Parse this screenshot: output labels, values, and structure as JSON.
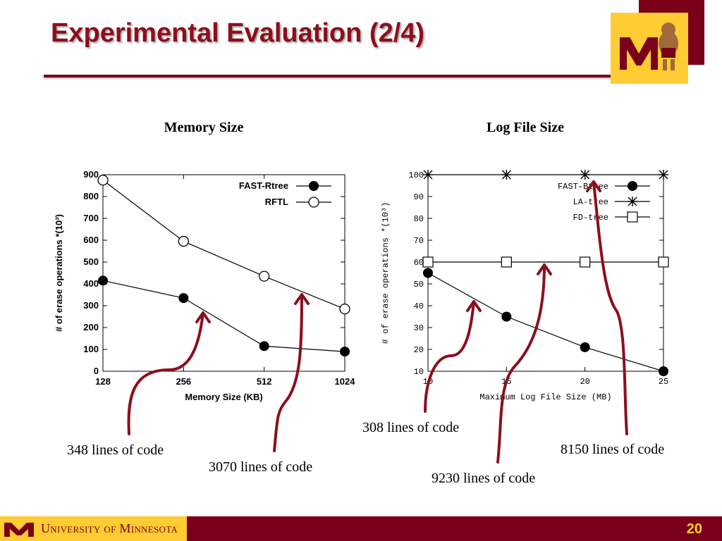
{
  "slide": {
    "title": "Experimental Evaluation (2/4)",
    "page_number": "20",
    "footer_text": "University of Minnesota"
  },
  "colors": {
    "maroon": "#7a0019",
    "gold": "#ffcc33",
    "arrow": "#8b0f1e"
  },
  "headings": {
    "left": "Memory Size",
    "right": "Log File Size"
  },
  "annotations": [
    {
      "text": "348 lines of code",
      "points_to": "FAST-Rtree"
    },
    {
      "text": "3070 lines of code",
      "points_to": "RFTL"
    },
    {
      "text": "308 lines of code",
      "points_to": "FAST-Btree"
    },
    {
      "text": "9230 lines of code",
      "points_to": "FD-tree"
    },
    {
      "text": "8150 lines of code",
      "points_to": "LA-tree"
    }
  ],
  "chart_data": [
    {
      "type": "line",
      "xlabel": "Memory Size (KB)",
      "ylabel": "# of erase operations *(10³)",
      "categories": [
        "128",
        "256",
        "512",
        "1024"
      ],
      "ylim": [
        0,
        900
      ],
      "yticks": [
        0,
        100,
        200,
        300,
        400,
        500,
        600,
        700,
        800,
        900
      ],
      "legend_position": "top-right",
      "series": [
        {
          "name": "FAST-Rtree",
          "marker": "filled-circle",
          "values": [
            415,
            335,
            115,
            90
          ]
        },
        {
          "name": "RFTL",
          "marker": "open-circle",
          "values": [
            875,
            595,
            435,
            285
          ]
        }
      ]
    },
    {
      "type": "line",
      "xlabel": "Maximum Log File Size (MB)",
      "ylabel": "# of erase operations *(10³)",
      "x": [
        10,
        15,
        20,
        25
      ],
      "xlim": [
        10,
        25
      ],
      "ylim": [
        10,
        100
      ],
      "yticks": [
        10,
        20,
        30,
        40,
        50,
        60,
        70,
        80,
        90,
        100
      ],
      "legend_position": "top-right",
      "series": [
        {
          "name": "FAST-Btree",
          "marker": "filled-circle",
          "values": [
            55,
            35,
            21,
            10
          ]
        },
        {
          "name": "LA-tree",
          "marker": "star",
          "values": [
            100,
            100,
            100,
            100
          ]
        },
        {
          "name": "FD-tree",
          "marker": "open-square",
          "values": [
            60,
            60,
            60,
            60
          ]
        }
      ]
    }
  ]
}
